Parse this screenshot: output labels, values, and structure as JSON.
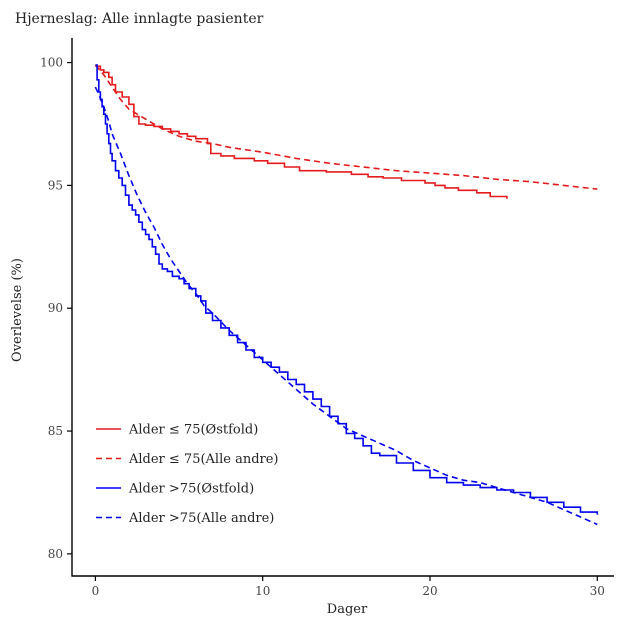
{
  "chart_data": {
    "type": "line",
    "title": "Hjerneslag: Alle innlagte pasienter",
    "xlabel": "Dager",
    "ylabel": "Overlevelse (%)",
    "xlim": [
      -1.4,
      31.0
    ],
    "ylim": [
      79.1,
      101.0
    ],
    "xticks": [
      0,
      10,
      20,
      30
    ],
    "yticks": [
      80,
      85,
      90,
      95,
      100
    ],
    "grid": false,
    "legend_position": "bottom-left",
    "series": [
      {
        "name": "Alder ≤ 75(Østfold)",
        "color": "#e41a1c",
        "dash": "solid",
        "step": true,
        "x": [
          0,
          0.3,
          0.5,
          0.8,
          1.0,
          1.2,
          1.6,
          2.0,
          2.3,
          2.6,
          3.0,
          3.5,
          4.0,
          4.5,
          5.0,
          5.5,
          6.0,
          6.7,
          6.9,
          7.5,
          8.3,
          9.5,
          10.3,
          11.3,
          12.2,
          13.8,
          15.3,
          16.3,
          17.2,
          18.3,
          19.7,
          20.3,
          20.9,
          21.7,
          22.8,
          23.6,
          24.6
        ],
        "y": [
          99.85,
          99.7,
          99.6,
          99.4,
          99.1,
          98.8,
          98.6,
          98.3,
          97.8,
          97.5,
          97.45,
          97.4,
          97.3,
          97.2,
          97.1,
          97.0,
          96.9,
          96.7,
          96.3,
          96.2,
          96.1,
          96.0,
          95.9,
          95.75,
          95.6,
          95.55,
          95.45,
          95.35,
          95.3,
          95.2,
          95.1,
          95.0,
          94.9,
          94.8,
          94.7,
          94.55,
          94.45
        ]
      },
      {
        "name": "Alder ≤ 75(Alle andre)",
        "color": "#e41a1c",
        "dash": "dashed",
        "step": false,
        "x": [
          0,
          0.5,
          1.0,
          1.5,
          2.0,
          3.0,
          4.0,
          5.0,
          6.0,
          7.0,
          8.0,
          9.0,
          10.0,
          12.0,
          14.0,
          16.0,
          18.0,
          20.0,
          22.0,
          24.0,
          26.0,
          28.0,
          30.0
        ],
        "y": [
          99.9,
          99.5,
          99.0,
          98.5,
          98.1,
          97.7,
          97.3,
          97.0,
          96.8,
          96.7,
          96.55,
          96.45,
          96.35,
          96.1,
          95.9,
          95.75,
          95.6,
          95.5,
          95.4,
          95.25,
          95.15,
          95.0,
          94.85
        ]
      },
      {
        "name": "Alder >75(Østfold)",
        "color": "#0000ee",
        "dash": "solid",
        "step": true,
        "x": [
          0,
          0.1,
          0.2,
          0.3,
          0.4,
          0.5,
          0.6,
          0.7,
          0.8,
          0.9,
          1.0,
          1.2,
          1.4,
          1.6,
          1.8,
          2.0,
          2.2,
          2.4,
          2.6,
          2.8,
          3.0,
          3.2,
          3.4,
          3.6,
          3.8,
          4.0,
          4.3,
          4.6,
          5.0,
          5.3,
          5.6,
          6.0,
          6.3,
          6.6,
          7.0,
          7.5,
          8.0,
          8.5,
          9.0,
          9.5,
          10.0,
          10.5,
          11.0,
          11.5,
          12.0,
          12.5,
          13.0,
          13.5,
          14.0,
          14.5,
          15.0,
          15.5,
          16.0,
          16.5,
          17.0,
          18.0,
          19.0,
          20.0,
          21.0,
          22.0,
          23.0,
          24.0,
          25.0,
          26.0,
          27.0,
          28.0,
          29.0,
          30.0
        ],
        "y": [
          99.9,
          99.3,
          98.8,
          98.5,
          98.2,
          97.9,
          97.5,
          97.1,
          96.7,
          96.3,
          96.0,
          95.6,
          95.3,
          95.0,
          94.6,
          94.2,
          94.0,
          93.8,
          93.5,
          93.2,
          93.0,
          92.8,
          92.5,
          92.2,
          91.8,
          91.6,
          91.5,
          91.3,
          91.2,
          91.0,
          90.8,
          90.5,
          90.3,
          89.8,
          89.5,
          89.2,
          88.9,
          88.6,
          88.3,
          88.0,
          87.8,
          87.6,
          87.4,
          87.1,
          86.9,
          86.6,
          86.3,
          86.0,
          85.6,
          85.3,
          84.9,
          84.7,
          84.4,
          84.1,
          84.0,
          83.7,
          83.4,
          83.1,
          82.9,
          82.8,
          82.7,
          82.6,
          82.5,
          82.3,
          82.1,
          81.9,
          81.7,
          81.6
        ]
      },
      {
        "name": "Alder >75(Alle andre)",
        "color": "#0000ee",
        "dash": "dashed",
        "step": false,
        "x": [
          0,
          0.2,
          0.5,
          0.8,
          1.0,
          1.5,
          2.0,
          2.5,
          3.0,
          3.5,
          4.0,
          4.5,
          5.0,
          5.5,
          6.0,
          6.5,
          7.0,
          8.0,
          9.0,
          10.0,
          11.0,
          12.0,
          13.0,
          14.0,
          15.0,
          16.0,
          17.0,
          18.0,
          19.0,
          20.0,
          21.0,
          22.0,
          23.0,
          24.0,
          25.0,
          26.0,
          27.0,
          28.0,
          29.0,
          30.0
        ],
        "y": [
          99.0,
          98.7,
          98.2,
          97.6,
          97.1,
          96.3,
          95.4,
          94.6,
          93.9,
          93.3,
          92.6,
          92.0,
          91.5,
          91.0,
          90.6,
          90.1,
          89.8,
          89.1,
          88.5,
          87.9,
          87.3,
          86.7,
          86.1,
          85.6,
          85.1,
          84.8,
          84.5,
          84.2,
          83.8,
          83.5,
          83.2,
          83.0,
          82.9,
          82.7,
          82.5,
          82.3,
          82.1,
          81.8,
          81.5,
          81.2
        ]
      }
    ]
  }
}
